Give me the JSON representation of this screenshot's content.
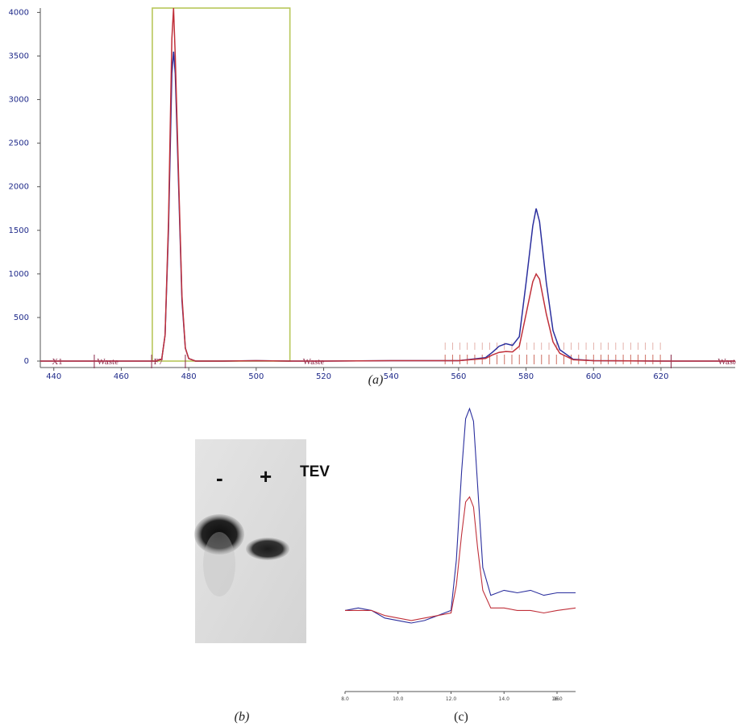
{
  "chart_data": [
    {
      "type": "line",
      "panel_label": "(a)",
      "xlim": [
        436,
        642
      ],
      "ylim": [
        0,
        4050
      ],
      "x_ticks": [
        "440",
        "460",
        "480",
        "500",
        "520",
        "540",
        "560",
        "580",
        "600",
        "620"
      ],
      "y_ticks": [
        "0",
        "500",
        "1000",
        "1500",
        "2000",
        "2500",
        "3000",
        "3500",
        "4000"
      ],
      "fraction_labels": [
        "X1",
        "Waste",
        "F7",
        "Waste",
        "Waste"
      ],
      "series": [
        {
          "color": "#2b2f9e",
          "x": [
            436,
            460,
            470,
            472,
            473,
            474,
            475,
            475.5,
            476,
            477,
            478,
            479,
            480,
            482,
            490,
            500,
            510,
            520,
            540,
            560,
            568,
            570,
            572,
            574,
            576,
            578,
            580,
            582,
            583,
            584,
            586,
            588,
            590,
            594,
            600,
            620,
            642
          ],
          "y": [
            0,
            0,
            0,
            20,
            300,
            1500,
            3300,
            3550,
            3300,
            2000,
            700,
            150,
            30,
            0,
            0,
            5,
            0,
            0,
            5,
            5,
            40,
            100,
            170,
            200,
            180,
            280,
            900,
            1550,
            1750,
            1600,
            900,
            350,
            130,
            20,
            5,
            0,
            0
          ]
        },
        {
          "color": "#c0303a",
          "x": [
            436,
            460,
            470,
            472,
            473,
            474,
            475,
            475.5,
            476,
            477,
            478,
            479,
            480,
            482,
            490,
            500,
            510,
            520,
            540,
            560,
            568,
            570,
            572,
            574,
            576,
            578,
            580,
            582,
            583,
            584,
            586,
            588,
            590,
            594,
            600,
            620,
            642
          ],
          "y": [
            0,
            0,
            0,
            20,
            300,
            1600,
            3700,
            4050,
            3500,
            2100,
            750,
            150,
            30,
            0,
            0,
            5,
            0,
            0,
            5,
            5,
            30,
            70,
            100,
            110,
            105,
            170,
            540,
            910,
            1000,
            940,
            540,
            220,
            90,
            15,
            5,
            0,
            0
          ]
        }
      ],
      "selection_box": {
        "x": [
          469.2,
          510
        ],
        "y": [
          0,
          4050
        ],
        "color": "#b8c75a"
      }
    },
    {
      "type": "line",
      "panel_label": "(c)",
      "xlim": [
        8,
        16.7
      ],
      "ylim": [
        0,
        100
      ],
      "x_ticks": [
        "8.0",
        "10.0",
        "12.0",
        "14.0",
        "16.0",
        "16."
      ],
      "series": [
        {
          "color": "#2b2f9e",
          "x": [
            8,
            8.5,
            9,
            9.5,
            10,
            10.5,
            11,
            11.5,
            12,
            12.2,
            12.4,
            12.55,
            12.7,
            12.85,
            13,
            13.2,
            13.5,
            14,
            14.5,
            15,
            15.5,
            16,
            16.7
          ],
          "y": [
            20,
            21,
            20,
            17,
            16,
            15,
            16,
            18,
            20,
            40,
            75,
            96,
            100,
            95,
            70,
            37,
            26,
            28,
            27,
            28,
            26,
            27,
            27
          ]
        },
        {
          "color": "#c0303a",
          "x": [
            8,
            8.5,
            9,
            9.5,
            10,
            10.5,
            11,
            11.5,
            12,
            12.2,
            12.4,
            12.55,
            12.7,
            12.85,
            13,
            13.2,
            13.5,
            14,
            14.5,
            15,
            15.5,
            16,
            16.7
          ],
          "y": [
            20,
            20,
            20,
            18,
            17,
            16,
            17,
            18,
            19,
            30,
            50,
            63,
            65,
            61,
            45,
            28,
            21,
            21,
            20,
            20,
            19,
            20,
            21
          ]
        }
      ]
    }
  ],
  "gel": {
    "minus": "-",
    "plus": "+",
    "label": "TEV",
    "panel_label": "(b)"
  }
}
